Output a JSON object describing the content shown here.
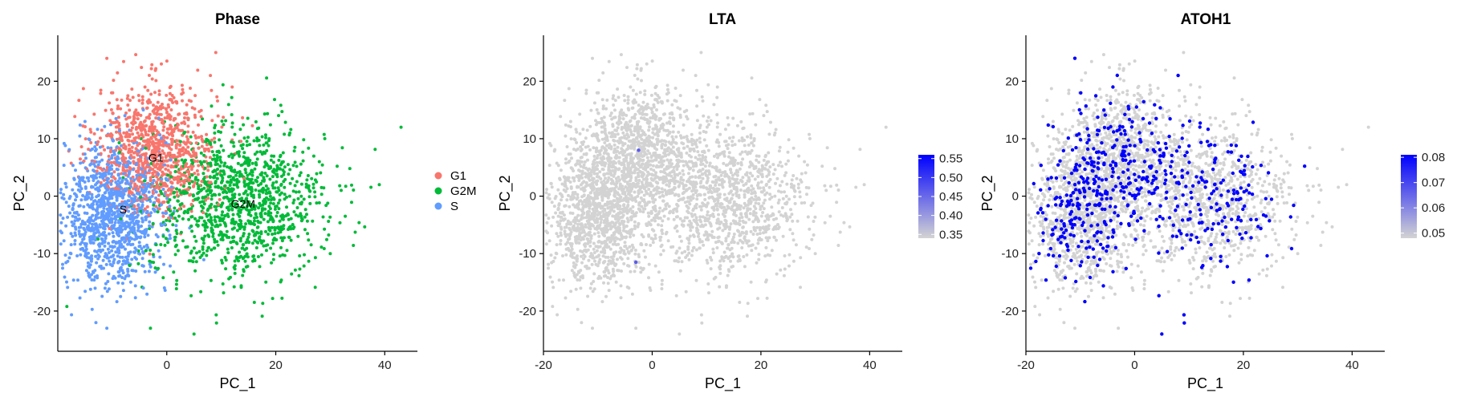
{
  "chart_data": [
    {
      "type": "scatter",
      "title": "Phase",
      "xlabel": "PC_1",
      "ylabel": "PC_2",
      "xlim": [
        -20,
        46
      ],
      "ylim": [
        -27,
        28
      ],
      "xticks": [
        0,
        20,
        40
      ],
      "yticks": [
        -20,
        -10,
        0,
        10,
        20
      ],
      "legend": {
        "position": "right",
        "entries": [
          "G1",
          "G2M",
          "S"
        ]
      },
      "cluster_labels": [
        {
          "text": "G1",
          "x": -2,
          "y": 6
        },
        {
          "text": "G2M",
          "x": 14,
          "y": -2
        },
        {
          "text": "S",
          "x": -8,
          "y": -3
        }
      ],
      "series": [
        {
          "name": "G1",
          "color": "#F8766D",
          "n": 950,
          "center": [
            -2,
            8
          ],
          "spread": [
            5.5,
            5.5
          ],
          "outliers": [
            [
              -11,
              24
            ],
            [
              -1,
              23
            ],
            [
              9,
              25
            ],
            [
              8,
              21
            ],
            [
              12,
              19
            ],
            [
              -4,
              19
            ],
            [
              3,
              18
            ]
          ]
        },
        {
          "name": "G2M",
          "color": "#00BA38",
          "n": 1150,
          "center": [
            13,
            -1
          ],
          "spread": [
            8,
            6.5
          ],
          "outliers": [
            [
              43,
              12
            ],
            [
              39,
              2
            ],
            [
              32,
              1
            ],
            [
              29,
              10
            ],
            [
              28,
              6
            ],
            [
              30,
              -10
            ],
            [
              5,
              -24
            ],
            [
              -3,
              -23
            ]
          ]
        },
        {
          "name": "S",
          "color": "#619CFF",
          "n": 1150,
          "center": [
            -10,
            -3
          ],
          "spread": [
            4.5,
            6
          ],
          "outliers": [
            [
              -13,
              -22
            ],
            [
              -11,
              -23
            ],
            [
              -15,
              13
            ],
            [
              -14,
              8
            ]
          ]
        }
      ]
    },
    {
      "type": "scatter",
      "title": "LTA",
      "xlabel": "PC_1",
      "ylabel": "PC_2",
      "xlim": [
        -20,
        46
      ],
      "ylim": [
        -27,
        28
      ],
      "xticks": [
        -20,
        0,
        20,
        40
      ],
      "yticks": [
        -20,
        -10,
        0,
        10,
        20
      ],
      "colorbar": {
        "low_color": "#D3D3D3",
        "high_color": "#0000FF",
        "ticks": [
          0.35,
          0.4,
          0.45,
          0.5,
          0.55
        ],
        "range": [
          0.34,
          0.56
        ]
      },
      "highlight_points": [
        [
          -2.5,
          8
        ],
        [
          -3,
          -11.5
        ]
      ]
    },
    {
      "type": "scatter",
      "title": "ATOH1",
      "xlabel": "PC_1",
      "ylabel": "PC_2",
      "xlim": [
        -20,
        46
      ],
      "ylim": [
        -27,
        28
      ],
      "xticks": [
        -20,
        0,
        20,
        40
      ],
      "yticks": [
        -20,
        -10,
        0,
        10,
        20
      ],
      "colorbar": {
        "low_color": "#D3D3D3",
        "high_color": "#0000FF",
        "ticks": [
          0.05,
          0.06,
          0.07,
          0.08
        ],
        "range": [
          0.048,
          0.081
        ]
      },
      "expressing_fraction": 0.17
    }
  ]
}
